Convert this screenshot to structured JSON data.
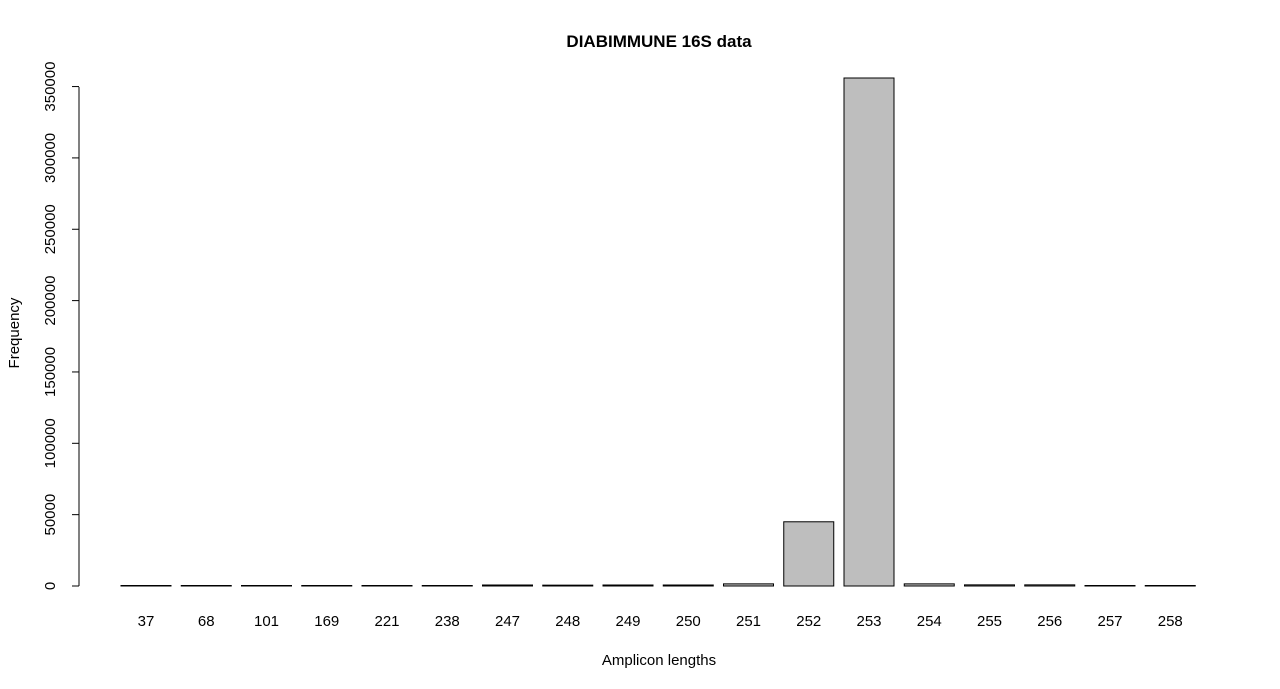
{
  "chart_data": {
    "type": "bar",
    "title": "DIABIMMUNE 16S data",
    "xlabel": "Amplicon lengths",
    "ylabel": "Frequency",
    "categories": [
      "37",
      "68",
      "101",
      "169",
      "221",
      "238",
      "247",
      "248",
      "249",
      "250",
      "251",
      "252",
      "253",
      "254",
      "255",
      "256",
      "257",
      "258"
    ],
    "values": [
      60,
      60,
      60,
      60,
      60,
      60,
      700,
      600,
      700,
      700,
      1500,
      45000,
      356000,
      1500,
      800,
      800,
      80,
      80
    ],
    "yticks": [
      0,
      50000,
      100000,
      150000,
      200000,
      250000,
      300000,
      350000
    ],
    "ylim": [
      0,
      356000
    ],
    "grid": false,
    "legend": "none",
    "colors": {
      "bar_fill": "#bebebe",
      "bar_stroke": "#000000"
    }
  }
}
